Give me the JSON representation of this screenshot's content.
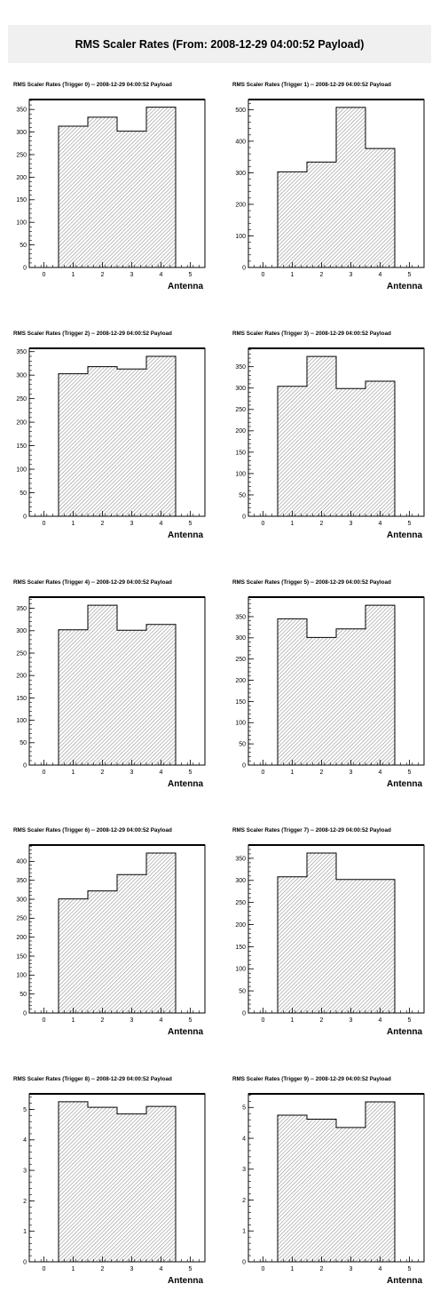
{
  "page_title": "RMS Scaler Rates (From: 2008-12-29 04:00:52 Payload)",
  "chart_data": [
    {
      "type": "bar",
      "title": "RMS Scaler Rates (Trigger 0) -- 2008-12-29 04:00:52 Payload",
      "xlabel": "Antenna",
      "ylabel": "",
      "categories": [
        "1",
        "2",
        "3",
        "4"
      ],
      "values": [
        313,
        333,
        302,
        355
      ],
      "xlim": [
        -0.5,
        5.5
      ],
      "ylim": [
        0,
        372
      ],
      "xticks": [
        0,
        1,
        2,
        3,
        4,
        5
      ],
      "yticks": [
        0,
        50,
        100,
        150,
        200,
        250,
        300,
        350
      ]
    },
    {
      "type": "bar",
      "title": "RMS Scaler Rates (Trigger 1) -- 2008-12-29 04:00:52 Payload",
      "xlabel": "Antenna",
      "ylabel": "",
      "categories": [
        "1",
        "2",
        "3",
        "4"
      ],
      "values": [
        303,
        334,
        507,
        377
      ],
      "xlim": [
        -0.5,
        5.5
      ],
      "ylim": [
        0,
        532
      ],
      "xticks": [
        0,
        1,
        2,
        3,
        4,
        5
      ],
      "yticks": [
        0,
        100,
        200,
        300,
        400,
        500
      ]
    },
    {
      "type": "bar",
      "title": "RMS Scaler Rates (Trigger 2) -- 2008-12-29 04:00:52 Payload",
      "xlabel": "Antenna",
      "ylabel": "",
      "categories": [
        "1",
        "2",
        "3",
        "4"
      ],
      "values": [
        303,
        318,
        313,
        340
      ],
      "xlim": [
        -0.5,
        5.5
      ],
      "ylim": [
        0,
        357
      ],
      "xticks": [
        0,
        1,
        2,
        3,
        4,
        5
      ],
      "yticks": [
        0,
        50,
        100,
        150,
        200,
        250,
        300,
        350
      ]
    },
    {
      "type": "bar",
      "title": "RMS Scaler Rates (Trigger 3) -- 2008-12-29 04:00:52 Payload",
      "xlabel": "Antenna",
      "ylabel": "",
      "categories": [
        "1",
        "2",
        "3",
        "4"
      ],
      "values": [
        304,
        374,
        299,
        316
      ],
      "xlim": [
        -0.5,
        5.5
      ],
      "ylim": [
        0,
        393
      ],
      "xticks": [
        0,
        1,
        2,
        3,
        4,
        5
      ],
      "yticks": [
        0,
        50,
        100,
        150,
        200,
        250,
        300,
        350
      ]
    },
    {
      "type": "bar",
      "title": "RMS Scaler Rates (Trigger 4) -- 2008-12-29 04:00:52 Payload",
      "xlabel": "Antenna",
      "ylabel": "",
      "categories": [
        "1",
        "2",
        "3",
        "4"
      ],
      "values": [
        302,
        357,
        301,
        314
      ],
      "xlim": [
        -0.5,
        5.5
      ],
      "ylim": [
        0,
        375
      ],
      "xticks": [
        0,
        1,
        2,
        3,
        4,
        5
      ],
      "yticks": [
        0,
        50,
        100,
        150,
        200,
        250,
        300,
        350
      ]
    },
    {
      "type": "bar",
      "title": "RMS Scaler Rates (Trigger 5) -- 2008-12-29 04:00:52 Payload",
      "xlabel": "Antenna",
      "ylabel": "",
      "categories": [
        "1",
        "2",
        "3",
        "4"
      ],
      "values": [
        345,
        301,
        321,
        377
      ],
      "xlim": [
        -0.5,
        5.5
      ],
      "ylim": [
        0,
        396
      ],
      "xticks": [
        0,
        1,
        2,
        3,
        4,
        5
      ],
      "yticks": [
        0,
        50,
        100,
        150,
        200,
        250,
        300,
        350
      ]
    },
    {
      "type": "bar",
      "title": "RMS Scaler Rates (Trigger 6) -- 2008-12-29 04:00:52 Payload",
      "xlabel": "Antenna",
      "ylabel": "",
      "categories": [
        "1",
        "2",
        "3",
        "4"
      ],
      "values": [
        301,
        322,
        365,
        422
      ],
      "xlim": [
        -0.5,
        5.5
      ],
      "ylim": [
        0,
        443
      ],
      "xticks": [
        0,
        1,
        2,
        3,
        4,
        5
      ],
      "yticks": [
        0,
        50,
        100,
        150,
        200,
        250,
        300,
        350,
        400
      ]
    },
    {
      "type": "bar",
      "title": "RMS Scaler Rates (Trigger 7) -- 2008-12-29 04:00:52 Payload",
      "xlabel": "Antenna",
      "ylabel": "",
      "categories": [
        "1",
        "2",
        "3",
        "4"
      ],
      "values": [
        308,
        362,
        302,
        302
      ],
      "xlim": [
        -0.5,
        5.5
      ],
      "ylim": [
        0,
        380
      ],
      "xticks": [
        0,
        1,
        2,
        3,
        4,
        5
      ],
      "yticks": [
        0,
        50,
        100,
        150,
        200,
        250,
        300,
        350
      ]
    },
    {
      "type": "bar",
      "title": "RMS Scaler Rates (Trigger 8) -- 2008-12-29 04:00:52 Payload",
      "xlabel": "Antenna",
      "ylabel": "",
      "categories": [
        "1",
        "2",
        "3",
        "4"
      ],
      "values": [
        5.25,
        5.07,
        4.85,
        5.1
      ],
      "xlim": [
        -0.5,
        5.5
      ],
      "ylim": [
        0,
        5.51
      ],
      "xticks": [
        0,
        1,
        2,
        3,
        4,
        5
      ],
      "yticks": [
        0,
        1,
        2,
        3,
        4,
        5
      ]
    },
    {
      "type": "bar",
      "title": "RMS Scaler Rates (Trigger 9) -- 2008-12-29 04:00:52 Payload",
      "xlabel": "Antenna",
      "ylabel": "",
      "categories": [
        "1",
        "2",
        "3",
        "4"
      ],
      "values": [
        4.75,
        4.62,
        4.35,
        5.18
      ],
      "xlim": [
        -0.5,
        5.5
      ],
      "ylim": [
        0,
        5.44
      ],
      "xticks": [
        0,
        1,
        2,
        3,
        4,
        5
      ],
      "yticks": [
        0,
        1,
        2,
        3,
        4,
        5
      ]
    }
  ]
}
